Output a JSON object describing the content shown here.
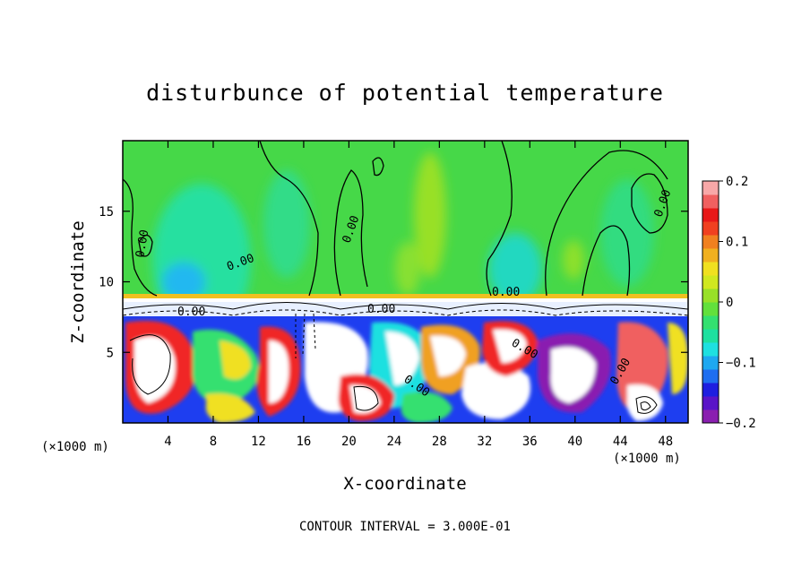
{
  "chart_data": {
    "type": "heatmap",
    "title": "disturbunce of potential temperature",
    "xlabel": "X-coordinate",
    "ylabel": "Z-coordinate",
    "x_unit": "(×1000 m)",
    "x_unit_right": "(×1000 m)",
    "xlim": [
      0,
      50
    ],
    "ylim": [
      0,
      20
    ],
    "x_ticks": [
      4,
      8,
      12,
      16,
      20,
      24,
      28,
      32,
      36,
      40,
      44,
      48
    ],
    "y_ticks": [
      5,
      10,
      15
    ],
    "colorbar": {
      "range": [
        -0.2,
        0.2
      ],
      "tick_values": [
        0.2,
        0.1,
        0,
        -0.1,
        -0.2
      ],
      "tick_labels": [
        "0.2",
        "0.1",
        "0",
        "−0.1",
        "−0.2"
      ],
      "colors": [
        "#8a1fb0",
        "#5a14c8",
        "#1e1ee0",
        "#1e6ef0",
        "#1ea8f0",
        "#1ee0e0",
        "#1ee0a0",
        "#34e070",
        "#62e03c",
        "#98e028",
        "#d0e820",
        "#f0e020",
        "#f0b020",
        "#f08020",
        "#f04020",
        "#e81818",
        "#f06060",
        "#f8a8a8"
      ]
    },
    "contour_interval_text": "CONTOUR INTERVAL = 3.000E-01",
    "contour_labels": [
      "0.00",
      "0.00",
      "0.00",
      "0.00",
      "0.00",
      "0.00",
      "0.00",
      "0.00",
      "0.00",
      "0.00"
    ]
  }
}
